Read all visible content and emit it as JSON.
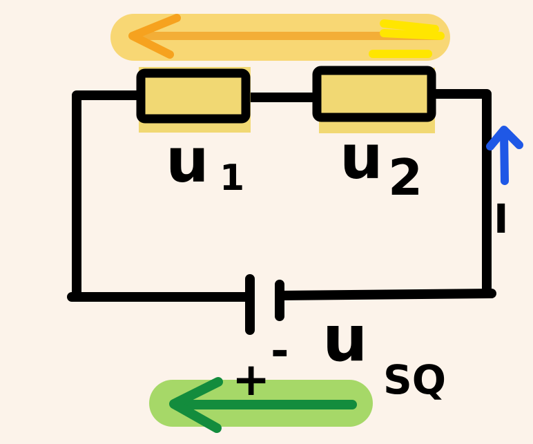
{
  "labels": {
    "u1_main": "u",
    "u1_sub": "1",
    "u2_main": "u",
    "u2_sub": "2",
    "current": "I",
    "source_main": "u",
    "source_sub": "SQ",
    "plus": "+",
    "minus": "-"
  },
  "colors": {
    "background": "#fcf3ea",
    "wire": "#000000",
    "resistor_fill": "#f1d873",
    "top_arrow_band": "#f8d774",
    "top_arrow_orange": "#f3ae37",
    "top_arrow_yellow": "#ffe600",
    "current_arrow": "#1f58e6",
    "bottom_arrow_band": "#a6d868",
    "bottom_arrow": "#138c3d"
  },
  "icons": {
    "top_arrow": "left-arrow",
    "current_arrow": "up-arrow",
    "bottom_arrow": "left-arrow",
    "source": "battery-symbol"
  }
}
